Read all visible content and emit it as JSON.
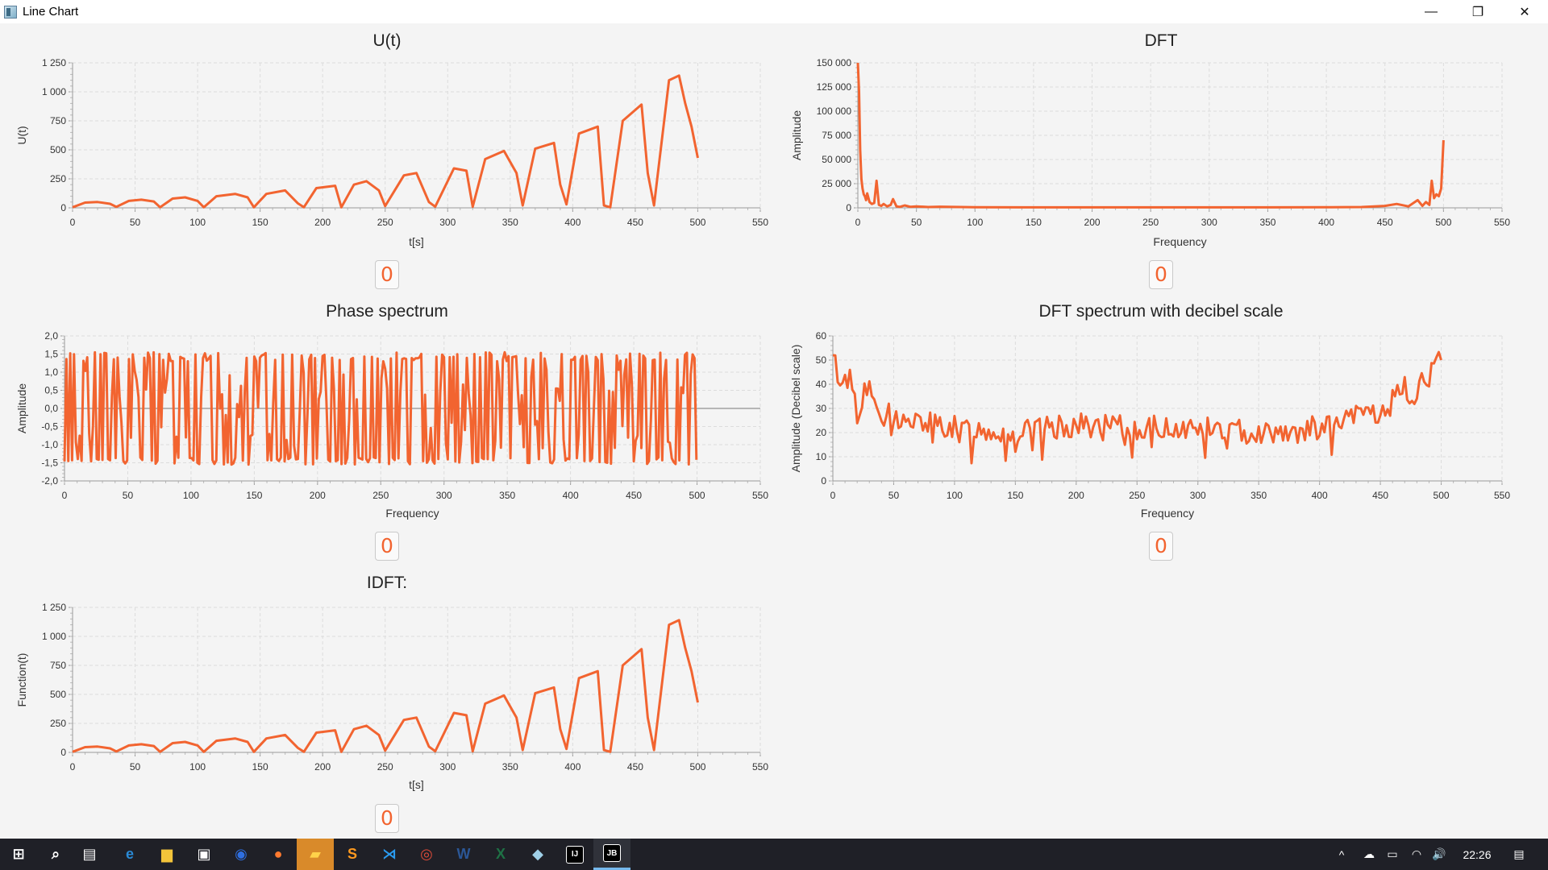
{
  "window": {
    "title": "Line Chart",
    "controls": {
      "minimize": "—",
      "maximize": "❐",
      "close": "✕"
    }
  },
  "accent_color": "#f26430",
  "charts": [
    {
      "id": "ut",
      "title": "U(t)",
      "xlabel": "t[s]",
      "ylabel": "U(t)",
      "xticks": [
        "0",
        "50",
        "100",
        "150",
        "200",
        "250",
        "300",
        "350",
        "400",
        "450",
        "500",
        "550"
      ],
      "yticks": [
        "0",
        "250",
        "500",
        "750",
        "1 000",
        "1 250"
      ],
      "counter": "0"
    },
    {
      "id": "dft",
      "title": "DFT",
      "xlabel": "Frequency",
      "ylabel": "Amplitude",
      "xticks": [
        "0",
        "50",
        "100",
        "150",
        "200",
        "250",
        "300",
        "350",
        "400",
        "450",
        "500",
        "550"
      ],
      "yticks": [
        "0",
        "25 000",
        "50 000",
        "75 000",
        "100 000",
        "125 000",
        "150 000"
      ],
      "counter": "0"
    },
    {
      "id": "phase",
      "title": "Phase spectrum",
      "xlabel": "Frequency",
      "ylabel": "Amplitude",
      "xticks": [
        "0",
        "50",
        "100",
        "150",
        "200",
        "250",
        "300",
        "350",
        "400",
        "450",
        "500",
        "550"
      ],
      "yticks": [
        "-2,0",
        "-1,5",
        "-1,0",
        "-0,5",
        "0,0",
        "0,5",
        "1,0",
        "1,5",
        "2,0"
      ],
      "counter": "0"
    },
    {
      "id": "db",
      "title": "DFT spectrum with decibel scale",
      "xlabel": "Frequency",
      "ylabel": "Amplitude (Decibel scale)",
      "xticks": [
        "0",
        "50",
        "100",
        "150",
        "200",
        "250",
        "300",
        "350",
        "400",
        "450",
        "500",
        "550"
      ],
      "yticks": [
        "0",
        "10",
        "20",
        "30",
        "40",
        "50",
        "60"
      ],
      "counter": "0"
    },
    {
      "id": "idft",
      "title": "IDFT:",
      "xlabel": "t[s]",
      "ylabel": "Function(t)",
      "xticks": [
        "0",
        "50",
        "100",
        "150",
        "200",
        "250",
        "300",
        "350",
        "400",
        "450",
        "500",
        "550"
      ],
      "yticks": [
        "0",
        "250",
        "500",
        "750",
        "1 000",
        "1 250"
      ],
      "counter": "0"
    }
  ],
  "chart_data": [
    {
      "type": "line",
      "title": "U(t)",
      "xlabel": "t[s]",
      "ylabel": "U(t)",
      "xlim": [
        0,
        550
      ],
      "ylim": [
        0,
        1250
      ],
      "series": [
        {
          "x": [
            0,
            10,
            20,
            30,
            35,
            45,
            55,
            65,
            70,
            80,
            90,
            100,
            105,
            115,
            130,
            140,
            145,
            155,
            170,
            180,
            185,
            195,
            210,
            215,
            225,
            235,
            245,
            250,
            265,
            275,
            285,
            290,
            305,
            315,
            320,
            330,
            345,
            355,
            360,
            370,
            385,
            390,
            395,
            405,
            420,
            425,
            430,
            440,
            455,
            460,
            465,
            477,
            485,
            490,
            495,
            500
          ],
          "y": [
            5,
            45,
            50,
            35,
            8,
            60,
            70,
            55,
            5,
            80,
            90,
            60,
            5,
            100,
            120,
            90,
            5,
            120,
            150,
            40,
            5,
            170,
            190,
            5,
            200,
            230,
            150,
            15,
            280,
            300,
            50,
            10,
            340,
            320,
            10,
            420,
            490,
            300,
            20,
            510,
            560,
            200,
            30,
            640,
            700,
            20,
            5,
            750,
            890,
            300,
            20,
            1100,
            1140,
            900,
            700,
            430
          ]
        }
      ]
    },
    {
      "type": "line",
      "title": "DFT",
      "xlabel": "Frequency",
      "ylabel": "Amplitude",
      "xlim": [
        0,
        550
      ],
      "ylim": [
        0,
        150000
      ],
      "series": [
        {
          "x": [
            0,
            1,
            2,
            3,
            4,
            5,
            6,
            7,
            8,
            10,
            12,
            14,
            16,
            18,
            20,
            22,
            25,
            28,
            30,
            33,
            36,
            40,
            45,
            50,
            60,
            70,
            100,
            150,
            200,
            250,
            300,
            350,
            400,
            430,
            450,
            460,
            470,
            478,
            482,
            485,
            488,
            490,
            492,
            494,
            496,
            498,
            500
          ],
          "y": [
            150000,
            120000,
            60000,
            30000,
            20000,
            14000,
            12000,
            8000,
            15000,
            6000,
            4000,
            5000,
            28000,
            3000,
            2000,
            4000,
            1500,
            3000,
            9000,
            1500,
            1000,
            2500,
            1000,
            1500,
            800,
            1200,
            600,
            500,
            500,
            500,
            500,
            500,
            600,
            800,
            2000,
            4000,
            1500,
            8000,
            2000,
            6000,
            3000,
            28000,
            10000,
            14000,
            12000,
            20000,
            70000
          ]
        }
      ]
    },
    {
      "type": "line",
      "title": "Phase spectrum",
      "xlabel": "Frequency",
      "ylabel": "Amplitude",
      "xlim": [
        0,
        550
      ],
      "ylim": [
        -2,
        2
      ],
      "note": "rapidly oscillating series between approx -1.5 and 1.5",
      "series": [
        {
          "x_range": [
            0,
            500
          ],
          "amplitude": 1.5
        }
      ]
    },
    {
      "type": "line",
      "title": "DFT spectrum with decibel scale",
      "xlabel": "Frequency",
      "ylabel": "Amplitude (Decibel scale)",
      "xlim": [
        0,
        550
      ],
      "ylim": [
        0,
        60
      ],
      "series": [
        {
          "x": [
            0,
            3,
            6,
            10,
            14,
            18,
            20,
            25,
            30,
            35,
            40,
            45,
            50,
            60,
            80,
            100,
            150,
            200,
            250,
            300,
            350,
            400,
            420,
            440,
            450,
            460,
            470,
            478,
            485,
            490,
            495,
            500
          ],
          "y": [
            52,
            46,
            42,
            41,
            44,
            35,
            28,
            36,
            37,
            32,
            30,
            28,
            27,
            24,
            24,
            22,
            20,
            23,
            22,
            22,
            20,
            22,
            24,
            30,
            26,
            33,
            38,
            32,
            45,
            44,
            46,
            50
          ]
        }
      ]
    },
    {
      "type": "line",
      "title": "IDFT:",
      "xlabel": "t[s]",
      "ylabel": "Function(t)",
      "xlim": [
        0,
        550
      ],
      "ylim": [
        0,
        1250
      ],
      "series": [
        {
          "x": [
            0,
            10,
            20,
            30,
            35,
            45,
            55,
            65,
            70,
            80,
            90,
            100,
            105,
            115,
            130,
            140,
            145,
            155,
            170,
            180,
            185,
            195,
            210,
            215,
            225,
            235,
            245,
            250,
            265,
            275,
            285,
            290,
            305,
            315,
            320,
            330,
            345,
            355,
            360,
            370,
            385,
            390,
            395,
            405,
            420,
            425,
            430,
            440,
            455,
            460,
            465,
            477,
            485,
            490,
            495,
            500
          ],
          "y": [
            5,
            45,
            50,
            35,
            8,
            60,
            70,
            55,
            5,
            80,
            90,
            60,
            5,
            100,
            120,
            90,
            5,
            120,
            150,
            40,
            5,
            170,
            190,
            5,
            200,
            230,
            150,
            15,
            280,
            300,
            50,
            10,
            340,
            320,
            10,
            420,
            490,
            300,
            20,
            510,
            560,
            200,
            30,
            640,
            700,
            20,
            5,
            750,
            890,
            300,
            20,
            1100,
            1140,
            900,
            700,
            430
          ]
        }
      ]
    }
  ],
  "taskbar": {
    "items": [
      {
        "name": "start-button",
        "icon": "windows-icon",
        "glyph": "⊞",
        "color": "#ffffff"
      },
      {
        "name": "search-button",
        "icon": "search-icon",
        "glyph": "⌕",
        "color": "#ffffff"
      },
      {
        "name": "task-view-button",
        "icon": "task-view-icon",
        "glyph": "▤",
        "color": "#ffffff"
      },
      {
        "name": "edge-button",
        "icon": "edge-icon",
        "glyph": "e",
        "color": "#2a8ad6"
      },
      {
        "name": "file-explorer-button",
        "icon": "folder-icon",
        "glyph": "▆",
        "color": "#f3c43a"
      },
      {
        "name": "store-button",
        "icon": "store-icon",
        "glyph": "▣",
        "color": "#ffffff"
      },
      {
        "name": "maps-button",
        "icon": "maps-icon",
        "glyph": "◉",
        "color": "#2f6fe0"
      },
      {
        "name": "firefox-button",
        "icon": "firefox-icon",
        "glyph": "●",
        "color": "#ff7a2f"
      },
      {
        "name": "sticky-notes-button",
        "icon": "sticky-notes-icon",
        "glyph": "▰",
        "color": "#ffd24a"
      },
      {
        "name": "sublime-button",
        "icon": "sublime-icon",
        "glyph": "S",
        "color": "#ff9a1f"
      },
      {
        "name": "vscode-button",
        "icon": "vscode-icon",
        "glyph": "⋊",
        "color": "#2a9bf0"
      },
      {
        "name": "chrome-button",
        "icon": "chrome-icon",
        "glyph": "◎",
        "color": "#dd4b39"
      },
      {
        "name": "word-button",
        "icon": "word-icon",
        "glyph": "W",
        "color": "#2b5797"
      },
      {
        "name": "excel-button",
        "icon": "excel-icon",
        "glyph": "X",
        "color": "#1e7145"
      },
      {
        "name": "app-button",
        "icon": "app-icon",
        "glyph": "◆",
        "color": "#9fd0e8"
      },
      {
        "name": "intellij-button",
        "icon": "intellij-icon",
        "glyph": "IJ",
        "color": "#000000"
      },
      {
        "name": "jetbrains-button",
        "icon": "jetbrains-icon",
        "glyph": "JB",
        "color": "#000000"
      }
    ],
    "tray": {
      "chevron": "^",
      "onedrive": "☁",
      "battery": "▭",
      "wifi": "◠",
      "volume": "🔊",
      "time": "22:26",
      "notification": "▤"
    }
  }
}
